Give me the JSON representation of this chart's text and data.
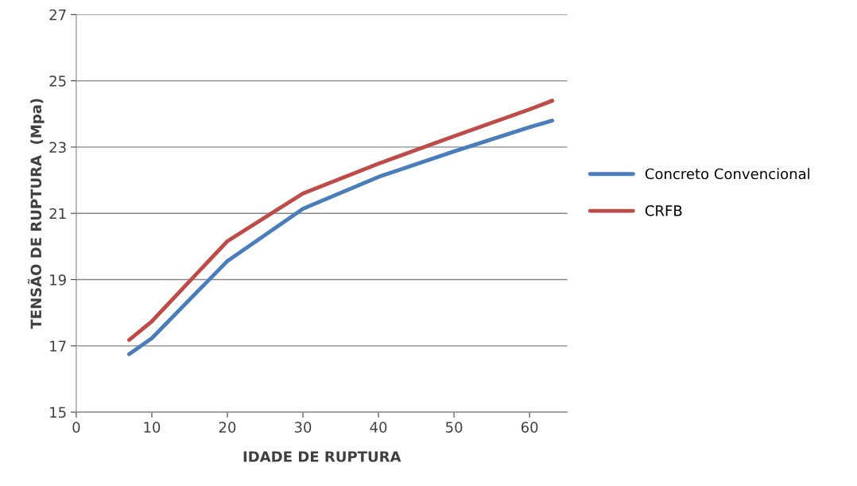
{
  "chart_data": {
    "type": "line",
    "xlabel": "IDADE DE RUPTURA",
    "ylabel": "TENSÃO DE RUPTURA  (Mpa)",
    "series": [
      {
        "name": "Concreto Convencional",
        "color": "#4a7ebb",
        "x": [
          7,
          10,
          20,
          30,
          40,
          50,
          60,
          63
        ],
        "values": [
          16.75,
          17.23,
          19.56,
          21.14,
          22.1,
          22.87,
          23.6,
          23.8
        ]
      },
      {
        "name": "CRFB",
        "color": "#be4b48",
        "x": [
          7,
          10,
          20,
          30,
          40,
          50,
          60,
          63
        ],
        "values": [
          17.18,
          17.74,
          20.16,
          21.6,
          22.5,
          23.33,
          24.14,
          24.4
        ]
      }
    ],
    "xlim": [
      0,
      65
    ],
    "xticks": [
      0,
      10,
      20,
      30,
      40,
      50,
      60
    ],
    "ylim": [
      15,
      27
    ],
    "yticks": [
      15,
      17,
      19,
      21,
      23,
      25,
      27
    ],
    "grid": "y",
    "legend": "right",
    "marker": "none",
    "line_style": "solid"
  }
}
